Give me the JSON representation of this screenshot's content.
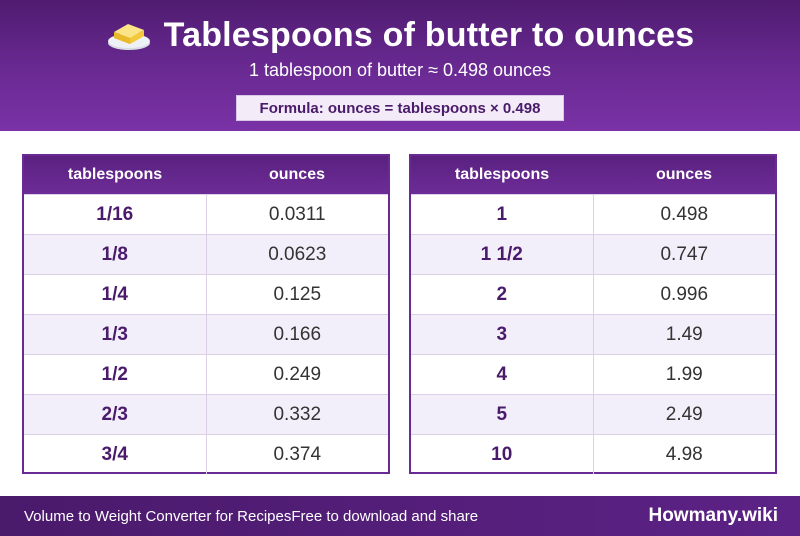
{
  "header": {
    "title": "Tablespoons of butter to ounces",
    "subtitle": "1 tablespoon of butter ≈ 0.498 ounces",
    "formula": "Formula: ounces = tablespoons × 0.498",
    "icon": "butter-icon"
  },
  "tables": {
    "columns": [
      "tablespoons",
      "ounces"
    ],
    "left": [
      {
        "tbsp": "1/16",
        "oz": "0.0311"
      },
      {
        "tbsp": "1/8",
        "oz": "0.0623"
      },
      {
        "tbsp": "1/4",
        "oz": "0.125"
      },
      {
        "tbsp": "1/3",
        "oz": "0.166"
      },
      {
        "tbsp": "1/2",
        "oz": "0.249"
      },
      {
        "tbsp": "2/3",
        "oz": "0.332"
      },
      {
        "tbsp": "3/4",
        "oz": "0.374"
      }
    ],
    "right": [
      {
        "tbsp": "1",
        "oz": "0.498"
      },
      {
        "tbsp": "1 1/2",
        "oz": "0.747"
      },
      {
        "tbsp": "2",
        "oz": "0.996"
      },
      {
        "tbsp": "3",
        "oz": "1.49"
      },
      {
        "tbsp": "4",
        "oz": "1.99"
      },
      {
        "tbsp": "5",
        "oz": "2.49"
      },
      {
        "tbsp": "10",
        "oz": "4.98"
      }
    ]
  },
  "footer": {
    "left_text": "Volume to Weight Converter for RecipesFree to download and share",
    "brand": "Howmany.wiki"
  },
  "colors": {
    "header_purple": "#6a2a93",
    "dark_purple": "#4a1a6b",
    "row_alt": "#f3effa"
  }
}
